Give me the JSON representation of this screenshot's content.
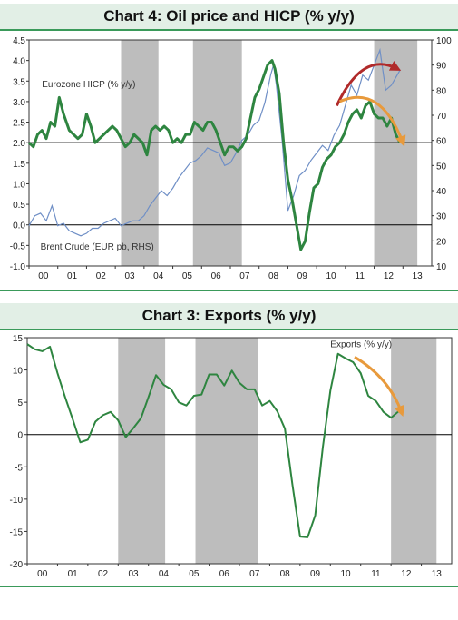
{
  "chart_data": [
    {
      "type": "line",
      "title": "Chart 4: Oil price and HICP (% y/y)",
      "x_ticks": [
        "00",
        "01",
        "02",
        "03",
        "04",
        "05",
        "06",
        "07",
        "08",
        "09",
        "10",
        "11",
        "12",
        "13"
      ],
      "ylim_left": [
        -1.0,
        4.5
      ],
      "y_ticks_left": [
        "-1.0",
        "-0.5",
        "0.0",
        "0.5",
        "1.0",
        "1.5",
        "2.0",
        "2.5",
        "3.0",
        "3.5",
        "4.0",
        "4.5"
      ],
      "ylim_right": [
        10,
        100
      ],
      "y_ticks_right": [
        "10",
        "20",
        "30",
        "40",
        "50",
        "60",
        "70",
        "80",
        "90",
        "100"
      ],
      "reference_line_left": 2.0,
      "shaded_ranges": [
        [
          2003.2,
          2004.5
        ],
        [
          2005.7,
          2007.4
        ],
        [
          2012.0,
          2013.5
        ]
      ],
      "series": [
        {
          "name": "Eurozone HICP (% y/y)",
          "axis": "left",
          "color": "#2e8540",
          "x": [
            2000.0,
            2000.15,
            2000.3,
            2000.45,
            2000.6,
            2000.75,
            2000.9,
            2001.05,
            2001.2,
            2001.4,
            2001.55,
            2001.7,
            2001.85,
            2002.0,
            2002.15,
            2002.3,
            2002.45,
            2002.6,
            2002.75,
            2002.9,
            2003.05,
            2003.2,
            2003.35,
            2003.5,
            2003.65,
            2003.8,
            2003.95,
            2004.1,
            2004.25,
            2004.4,
            2004.55,
            2004.7,
            2004.85,
            2005.0,
            2005.15,
            2005.3,
            2005.45,
            2005.6,
            2005.75,
            2005.9,
            2006.05,
            2006.2,
            2006.35,
            2006.5,
            2006.65,
            2006.8,
            2006.95,
            2007.1,
            2007.25,
            2007.4,
            2007.55,
            2007.7,
            2007.85,
            2008.0,
            2008.15,
            2008.3,
            2008.45,
            2008.55,
            2008.7,
            2008.85,
            2009.0,
            2009.15,
            2009.3,
            2009.45,
            2009.6,
            2009.75,
            2009.9,
            2010.05,
            2010.2,
            2010.35,
            2010.5,
            2010.65,
            2010.8,
            2010.95,
            2011.1,
            2011.25,
            2011.4,
            2011.55,
            2011.7,
            2011.85,
            2012.0,
            2012.15,
            2012.3,
            2012.45,
            2012.6,
            2012.75,
            2012.9
          ],
          "y": [
            2.0,
            1.9,
            2.2,
            2.3,
            2.1,
            2.5,
            2.4,
            3.1,
            2.7,
            2.3,
            2.2,
            2.1,
            2.2,
            2.7,
            2.4,
            2.0,
            2.1,
            2.2,
            2.3,
            2.4,
            2.3,
            2.1,
            1.9,
            2.0,
            2.2,
            2.1,
            2.0,
            1.7,
            2.3,
            2.4,
            2.3,
            2.4,
            2.3,
            2.0,
            2.1,
            2.0,
            2.2,
            2.2,
            2.5,
            2.4,
            2.3,
            2.5,
            2.5,
            2.3,
            2.0,
            1.7,
            1.9,
            1.9,
            1.8,
            1.9,
            2.1,
            2.6,
            3.1,
            3.3,
            3.6,
            3.9,
            4.0,
            3.8,
            3.2,
            2.0,
            1.1,
            0.6,
            0.0,
            -0.6,
            -0.4,
            0.3,
            0.9,
            1.0,
            1.4,
            1.6,
            1.7,
            1.9,
            2.0,
            2.2,
            2.5,
            2.7,
            2.8,
            2.6,
            2.9,
            3.0,
            2.7,
            2.6,
            2.6,
            2.4,
            2.6,
            2.2,
            2.0
          ]
        },
        {
          "name": "Brent Crude (EUR pb, RHS)",
          "axis": "right",
          "color": "#6f8fc6",
          "x": [
            2000.0,
            2000.2,
            2000.4,
            2000.6,
            2000.8,
            2001.0,
            2001.2,
            2001.4,
            2001.6,
            2001.8,
            2002.0,
            2002.2,
            2002.4,
            2002.6,
            2002.8,
            2003.0,
            2003.2,
            2003.4,
            2003.6,
            2003.8,
            2004.0,
            2004.2,
            2004.4,
            2004.6,
            2004.8,
            2005.0,
            2005.2,
            2005.4,
            2005.6,
            2005.8,
            2006.0,
            2006.2,
            2006.4,
            2006.6,
            2006.8,
            2007.0,
            2007.2,
            2007.4,
            2007.6,
            2007.8,
            2008.0,
            2008.2,
            2008.4,
            2008.5,
            2008.6,
            2008.8,
            2009.0,
            2009.2,
            2009.4,
            2009.6,
            2009.8,
            2010.0,
            2010.2,
            2010.4,
            2010.6,
            2010.8,
            2011.0,
            2011.2,
            2011.4,
            2011.6,
            2011.8,
            2012.0,
            2012.2,
            2012.4,
            2012.6,
            2012.8,
            2012.9
          ],
          "y": [
            26,
            30,
            31,
            28,
            34,
            26,
            27,
            24,
            23,
            22,
            23,
            25,
            25,
            27,
            28,
            29,
            26,
            27,
            28,
            28,
            30,
            34,
            37,
            40,
            38,
            41,
            45,
            48,
            51,
            52,
            54,
            57,
            56,
            55,
            50,
            51,
            55,
            60,
            62,
            66,
            68,
            75,
            86,
            90,
            82,
            60,
            32,
            38,
            46,
            48,
            52,
            55,
            58,
            56,
            62,
            66,
            74,
            82,
            78,
            86,
            84,
            90,
            96,
            80,
            82,
            86,
            88
          ]
        }
      ],
      "annotations": [
        {
          "text": "Eurozone HICP (% y/y)"
        },
        {
          "text": "Brent Crude (EUR pb, RHS)"
        }
      ],
      "arrows": [
        {
          "color": "#b02a2a",
          "from": [
            2010.7,
            2.9
          ],
          "to": [
            2012.8,
            3.8
          ]
        },
        {
          "color": "#e89a3c",
          "from": [
            2010.8,
            3.0
          ],
          "to": [
            2013.0,
            2.0
          ]
        }
      ]
    },
    {
      "type": "line",
      "title": "Chart 3: Exports (% y/y)",
      "x_ticks": [
        "00",
        "01",
        "02",
        "03",
        "04",
        "05",
        "06",
        "07",
        "08",
        "09",
        "10",
        "11",
        "12",
        "13"
      ],
      "ylim": [
        -20,
        15
      ],
      "y_ticks": [
        "15",
        "10",
        "5",
        "0",
        "-5",
        "-10",
        "-15",
        "-20"
      ],
      "reference_line": 0,
      "shaded_ranges": [
        [
          2003.0,
          2004.55
        ],
        [
          2005.55,
          2007.6
        ],
        [
          2012.0,
          2013.5
        ]
      ],
      "series": [
        {
          "name": "Exports (% y/y)",
          "color": "#2e8540",
          "x": [
            2000.0,
            2000.25,
            2000.5,
            2000.75,
            2001.0,
            2001.25,
            2001.5,
            2001.75,
            2002.0,
            2002.25,
            2002.5,
            2002.75,
            2003.0,
            2003.25,
            2003.5,
            2003.75,
            2004.0,
            2004.25,
            2004.5,
            2004.75,
            2005.0,
            2005.25,
            2005.5,
            2005.75,
            2006.0,
            2006.25,
            2006.5,
            2006.75,
            2007.0,
            2007.25,
            2007.5,
            2007.75,
            2008.0,
            2008.25,
            2008.5,
            2008.75,
            2009.0,
            2009.25,
            2009.5,
            2009.75,
            2010.0,
            2010.25,
            2010.5,
            2010.75,
            2011.0,
            2011.25,
            2011.5,
            2011.75,
            2012.0,
            2012.25
          ],
          "y": [
            14,
            13.2,
            12.9,
            13.6,
            9.5,
            5.8,
            2.4,
            -1.2,
            -0.8,
            2.0,
            3.0,
            3.5,
            2.2,
            -0.4,
            1.0,
            2.5,
            5.8,
            9.2,
            7.7,
            7.0,
            5.0,
            4.5,
            6.0,
            6.2,
            9.3,
            9.3,
            7.6,
            9.9,
            8.0,
            7.0,
            7.0,
            4.5,
            5.2,
            3.6,
            0.9,
            -7.8,
            -15.8,
            -15.9,
            -12.5,
            -2.0,
            6.8,
            12.5,
            11.8,
            11.2,
            9.5,
            6.0,
            5.2,
            3.5,
            2.6,
            3.6
          ]
        }
      ],
      "annotations": [
        {
          "text": "Exports (% y/y)"
        }
      ],
      "arrows": [
        {
          "color": "#e89a3c",
          "from": [
            2010.8,
            12.0
          ],
          "to": [
            2012.35,
            3.4
          ]
        }
      ]
    }
  ]
}
